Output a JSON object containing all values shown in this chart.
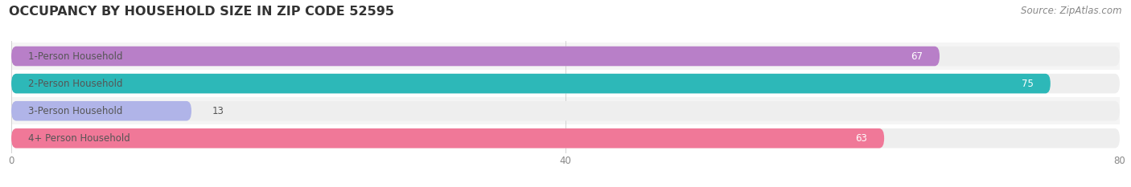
{
  "title": "OCCUPANCY BY HOUSEHOLD SIZE IN ZIP CODE 52595",
  "source": "Source: ZipAtlas.com",
  "categories": [
    "1-Person Household",
    "2-Person Household",
    "3-Person Household",
    "4+ Person Household"
  ],
  "values": [
    67,
    75,
    13,
    63
  ],
  "bar_colors": [
    "#b87fc8",
    "#2db8b8",
    "#b0b4e8",
    "#f07898"
  ],
  "bar_bg_colors": [
    "#eeeeee",
    "#eeeeee",
    "#eeeeee",
    "#eeeeee"
  ],
  "label_color": "#555555",
  "value_color_inside": "#ffffff",
  "value_color_outside": "#555555",
  "xlim": [
    0,
    80
  ],
  "xticks": [
    0,
    40,
    80
  ],
  "title_fontsize": 11.5,
  "source_fontsize": 8.5,
  "label_fontsize": 8.5,
  "value_fontsize": 8.5,
  "background_color": "#ffffff",
  "bar_height": 0.72,
  "row_bg_colors": [
    "#f5f5f5",
    "#ffffff",
    "#f5f5f5",
    "#ffffff"
  ],
  "figsize": [
    14.06,
    2.33
  ]
}
